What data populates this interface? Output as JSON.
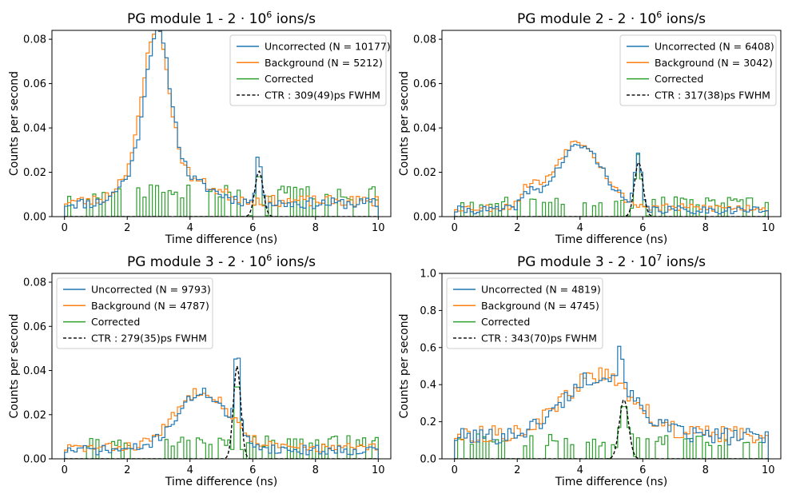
{
  "figure": {
    "xlabel": "Time difference (ns)",
    "ylabel": "Counts per second",
    "series_colors": {
      "uncorrected": "#1f77b4",
      "background": "#ff7f0e",
      "corrected": "#2ca02c",
      "ctr": "#000000"
    }
  },
  "chart_data": [
    {
      "type": "line",
      "title_prefix": "PG module 1 - 2 · 10",
      "title_exp": "6",
      "title_suffix": " ions/s",
      "xlabel": "Time difference (ns)",
      "ylabel": "Counts per second",
      "xlim": [
        -0.4,
        10.4
      ],
      "ylim": [
        0,
        0.084
      ],
      "xticks": [
        0,
        2,
        4,
        6,
        8,
        10
      ],
      "xtick_labels": [
        "0",
        "2",
        "4",
        "6",
        "8",
        "10"
      ],
      "yticks": [
        0.0,
        0.02,
        0.04,
        0.06,
        0.08
      ],
      "ytick_labels": [
        "0.00",
        "0.02",
        "0.04",
        "0.06",
        "0.08"
      ],
      "legend_position": "top-right",
      "legend": [
        "Uncorrected (N = 10177)",
        "Background (N = 5212)",
        "Corrected",
        "CTR : 309(49)ps FWHM"
      ],
      "series": [
        {
          "name": "Uncorrected (N = 10177)",
          "key": "uncorrected",
          "kind": "profile",
          "bg": 0.006,
          "peaks": [
            {
              "center": 2.95,
              "sigma": 0.42,
              "amp": 0.071
            },
            {
              "center": 3.8,
              "sigma": 0.9,
              "amp": 0.01
            },
            {
              "center": 1.9,
              "sigma": 0.35,
              "amp": 0.006
            },
            {
              "center": 6.2,
              "sigma": 0.09,
              "amp": 0.021
            }
          ],
          "noise": 0.0025,
          "seed": 11
        },
        {
          "name": "Background (N = 5212)",
          "key": "background",
          "kind": "profile",
          "bg": 0.007,
          "peaks": [
            {
              "center": 2.9,
              "sigma": 0.42,
              "amp": 0.072
            },
            {
              "center": 3.8,
              "sigma": 0.9,
              "amp": 0.01
            },
            {
              "center": 1.9,
              "sigma": 0.35,
              "amp": 0.007
            }
          ],
          "noise": 0.0025,
          "seed": 23
        },
        {
          "name": "Corrected",
          "key": "corrected",
          "kind": "sparse",
          "max": 0.016,
          "center": 6.2,
          "sigma": 0.09,
          "amp": 0.021,
          "seed": 37
        },
        {
          "name": "CTR : 309(49)ps FWHM",
          "key": "ctr",
          "kind": "gauss",
          "center": 6.2,
          "sigma": 0.131,
          "amp": 0.0205
        }
      ]
    },
    {
      "type": "line",
      "title_prefix": "PG module 2 - 2 · 10",
      "title_exp": "6",
      "title_suffix": " ions/s",
      "xlabel": "Time difference (ns)",
      "ylabel": "Counts per second",
      "xlim": [
        -0.4,
        10.4
      ],
      "ylim": [
        0,
        0.084
      ],
      "xticks": [
        0,
        2,
        4,
        6,
        8,
        10
      ],
      "xtick_labels": [
        "0",
        "2",
        "4",
        "6",
        "8",
        "10"
      ],
      "yticks": [
        0.0,
        0.02,
        0.04,
        0.06,
        0.08
      ],
      "ytick_labels": [
        "0.00",
        "0.02",
        "0.04",
        "0.06",
        "0.08"
      ],
      "legend_position": "top-right",
      "legend": [
        "Uncorrected (N = 6408)",
        "Background (N = 3042)",
        "Corrected",
        "CTR : 317(38)ps FWHM"
      ],
      "series": [
        {
          "name": "Uncorrected (N = 6408)",
          "key": "uncorrected",
          "kind": "profile",
          "bg": 0.003,
          "peaks": [
            {
              "center": 4.0,
              "sigma": 0.75,
              "amp": 0.029
            },
            {
              "center": 2.4,
              "sigma": 0.25,
              "amp": 0.006
            },
            {
              "center": 5.85,
              "sigma": 0.1,
              "amp": 0.024
            }
          ],
          "noise": 0.0018,
          "seed": 41
        },
        {
          "name": "Background (N = 3042)",
          "key": "background",
          "kind": "profile",
          "bg": 0.004,
          "peaks": [
            {
              "center": 3.95,
              "sigma": 0.75,
              "amp": 0.03
            },
            {
              "center": 2.4,
              "sigma": 0.25,
              "amp": 0.008
            }
          ],
          "noise": 0.0018,
          "seed": 53
        },
        {
          "name": "Corrected",
          "key": "corrected",
          "kind": "sparse",
          "max": 0.01,
          "center": 5.85,
          "sigma": 0.1,
          "amp": 0.028,
          "seed": 67
        },
        {
          "name": "CTR : 317(38)ps FWHM",
          "key": "ctr",
          "kind": "gauss",
          "center": 5.87,
          "sigma": 0.135,
          "amp": 0.0245
        }
      ]
    },
    {
      "type": "line",
      "title_prefix": "PG module 3 - 2 · 10",
      "title_exp": "6",
      "title_suffix": " ions/s",
      "xlabel": "Time difference (ns)",
      "ylabel": "Counts per second",
      "xlim": [
        -0.4,
        10.4
      ],
      "ylim": [
        0,
        0.084
      ],
      "xticks": [
        0,
        2,
        4,
        6,
        8,
        10
      ],
      "xtick_labels": [
        "0",
        "2",
        "4",
        "6",
        "8",
        "10"
      ],
      "yticks": [
        0.0,
        0.02,
        0.04,
        0.06,
        0.08
      ],
      "ytick_labels": [
        "0.00",
        "0.02",
        "0.04",
        "0.06",
        "0.08"
      ],
      "legend_position": "top-left",
      "legend": [
        "Uncorrected (N = 9793)",
        "Background (N = 4787)",
        "Corrected",
        "CTR : 279(35)ps FWHM"
      ],
      "series": [
        {
          "name": "Uncorrected (N = 9793)",
          "key": "uncorrected",
          "kind": "profile",
          "bg": 0.004,
          "peaks": [
            {
              "center": 4.4,
              "sigma": 0.8,
              "amp": 0.026
            },
            {
              "center": 5.5,
              "sigma": 0.07,
              "amp": 0.04
            }
          ],
          "noise": 0.0022,
          "seed": 71
        },
        {
          "name": "Background (N = 4787)",
          "key": "background",
          "kind": "profile",
          "bg": 0.005,
          "peaks": [
            {
              "center": 4.4,
              "sigma": 0.85,
              "amp": 0.026
            }
          ],
          "noise": 0.0022,
          "seed": 83
        },
        {
          "name": "Corrected",
          "key": "corrected",
          "kind": "sparse",
          "max": 0.012,
          "center": 5.5,
          "sigma": 0.07,
          "amp": 0.042,
          "seed": 97
        },
        {
          "name": "CTR : 279(35)ps FWHM",
          "key": "ctr",
          "kind": "gauss",
          "center": 5.5,
          "sigma": 0.118,
          "amp": 0.042
        }
      ]
    },
    {
      "type": "line",
      "title_prefix": "PG module 3 - 2 · 10",
      "title_exp": "7",
      "title_suffix": " ions/s",
      "xlabel": "Time difference (ns)",
      "ylabel": "Counts per second",
      "xlim": [
        -0.4,
        10.4
      ],
      "ylim": [
        0,
        1.0
      ],
      "xticks": [
        0,
        2,
        4,
        6,
        8,
        10
      ],
      "xtick_labels": [
        "0",
        "2",
        "4",
        "6",
        "8",
        "10"
      ],
      "yticks": [
        0.0,
        0.2,
        0.4,
        0.6,
        0.8,
        1.0
      ],
      "ytick_labels": [
        "0.0",
        "0.2",
        "0.4",
        "0.6",
        "0.8",
        "1.0"
      ],
      "legend_position": "top-left",
      "legend": [
        "Uncorrected (N = 4819)",
        "Background (N = 4745)",
        "Corrected",
        "CTR : 343(70)ps FWHM"
      ],
      "series": [
        {
          "name": "Uncorrected (N = 4819)",
          "key": "uncorrected",
          "kind": "profile",
          "bg": 0.12,
          "peaks": [
            {
              "center": 4.6,
              "sigma": 1.1,
              "amp": 0.33
            },
            {
              "center": 5.3,
              "sigma": 0.12,
              "amp": 0.18
            }
          ],
          "noise": 0.045,
          "seed": 101
        },
        {
          "name": "Background (N = 4745)",
          "key": "background",
          "kind": "profile",
          "bg": 0.13,
          "peaks": [
            {
              "center": 4.6,
              "sigma": 1.1,
              "amp": 0.32
            }
          ],
          "noise": 0.045,
          "seed": 113
        },
        {
          "name": "Corrected",
          "key": "corrected",
          "kind": "sparse",
          "max": 0.15,
          "center": 5.4,
          "sigma": 0.14,
          "amp": 0.3,
          "seed": 127
        },
        {
          "name": "CTR : 343(70)ps FWHM",
          "key": "ctr",
          "kind": "gauss",
          "center": 5.4,
          "sigma": 0.146,
          "amp": 0.32
        }
      ]
    }
  ]
}
